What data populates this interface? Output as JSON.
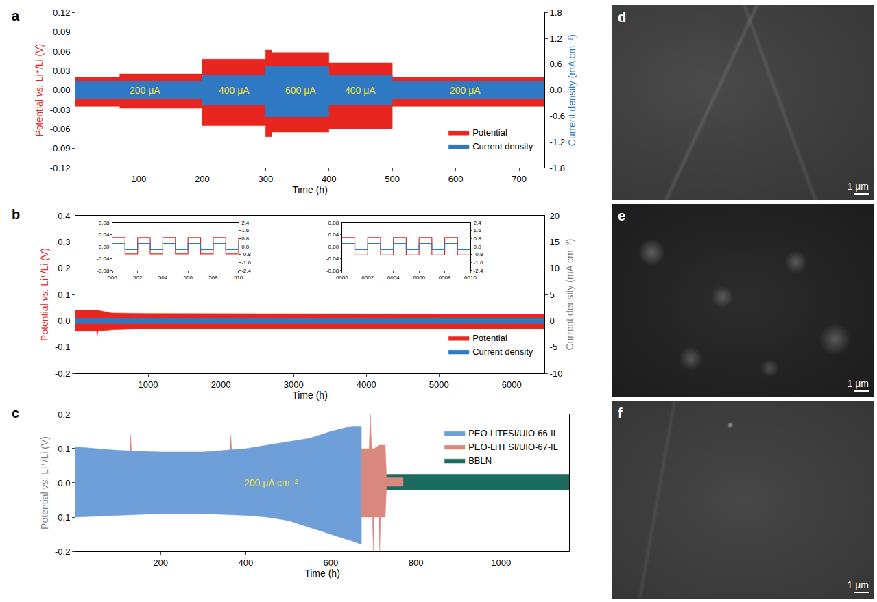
{
  "chart_data": [
    {
      "type": "band",
      "label": "a",
      "xlabel": "Time (h)",
      "ylabel": "Potential vs. Li⁺/Li (V)",
      "y2label": "Current density (mA cm⁻²)",
      "xlim": [
        0,
        740
      ],
      "xticks": [
        100,
        200,
        300,
        400,
        500,
        600,
        700
      ],
      "ylim": [
        -0.12,
        0.12
      ],
      "yticks": [
        -0.12,
        -0.09,
        -0.06,
        -0.03,
        {
          "value": 0,
          "label": "0.00"
        },
        0.03,
        0.06,
        0.09,
        0.12
      ],
      "y2lim": [
        -1.8,
        1.8
      ],
      "y2ticks": [
        -1.8,
        -1.2,
        -0.6,
        {
          "value": 0,
          "label": "0.0"
        },
        0.6,
        1.2,
        1.8
      ],
      "grid": false,
      "legend": "lower right",
      "series": [
        {
          "name": "Potential",
          "color": "#e8251f",
          "axis": "y",
          "x": [
            0,
            70,
            70,
            200,
            200,
            300,
            300,
            310,
            310,
            400,
            400,
            500,
            500,
            740
          ],
          "upper": [
            0.02,
            0.02,
            0.025,
            0.025,
            0.048,
            0.048,
            0.062,
            0.062,
            0.058,
            0.058,
            0.042,
            0.042,
            0.02,
            0.02
          ],
          "lower": [
            -0.025,
            -0.025,
            -0.028,
            -0.028,
            -0.055,
            -0.055,
            -0.072,
            -0.072,
            -0.065,
            -0.065,
            -0.06,
            -0.06,
            -0.025,
            -0.025
          ]
        },
        {
          "name": "Current density",
          "color": "#2f78c4",
          "axis": "y2",
          "x": [
            0,
            200,
            200,
            300,
            300,
            400,
            400,
            500,
            500,
            740
          ],
          "upper": [
            0.2,
            0.2,
            0.35,
            0.35,
            0.55,
            0.55,
            0.35,
            0.35,
            0.2,
            0.2
          ],
          "lower": [
            -0.2,
            -0.2,
            -0.35,
            -0.35,
            -0.62,
            -0.62,
            -0.35,
            -0.35,
            -0.2,
            -0.2
          ]
        }
      ],
      "annotations": [
        {
          "text": "200 μA",
          "x": 110,
          "y": 0
        },
        {
          "text": "400 μA",
          "x": 250,
          "y": 0
        },
        {
          "text": "600 μA",
          "x": 355,
          "y": 0
        },
        {
          "text": "400 μA",
          "x": 450,
          "y": 0
        },
        {
          "text": "200 μA",
          "x": 615,
          "y": 0
        }
      ]
    },
    {
      "type": "band",
      "label": "b",
      "xlabel": "Time (h)",
      "ylabel": "Potential vs. Li⁺/Li (V)",
      "y2label": "Current density (mA cm⁻²)",
      "xlim": [
        0,
        6450
      ],
      "xticks": [
        1000,
        2000,
        3000,
        4000,
        5000,
        6000
      ],
      "ylim": [
        -0.2,
        0.4
      ],
      "yticks": [
        -0.2,
        -0.1,
        {
          "value": 0,
          "label": "0.0"
        },
        0.1,
        0.2,
        0.3,
        0.4
      ],
      "y2lim": [
        -10,
        20
      ],
      "y2ticks": [
        -10,
        -5,
        0,
        5,
        10,
        15,
        20
      ],
      "grid": false,
      "legend": "lower right",
      "series": [
        {
          "name": "Potential",
          "color": "#e8251f",
          "axis": "y",
          "x": [
            0,
            290,
            300,
            310,
            500,
            1000,
            6450
          ],
          "upper": [
            0.04,
            0.04,
            0.04,
            0.04,
            0.03,
            0.028,
            0.025
          ],
          "lower": [
            -0.04,
            -0.04,
            -0.06,
            -0.04,
            -0.035,
            -0.03,
            -0.03
          ]
        },
        {
          "name": "Current density",
          "color": "#2f78c4",
          "axis": "y2",
          "x": [
            0,
            6450
          ],
          "upper": [
            0.5,
            0.5
          ],
          "lower": [
            -0.5,
            -0.5
          ]
        }
      ]
    },
    {
      "type": "line",
      "xlim": [
        500,
        510
      ],
      "xticks": [
        500,
        502,
        504,
        506,
        508,
        510
      ],
      "ylim": [
        -0.08,
        0.08
      ],
      "yticks": [
        -0.08,
        -0.04,
        {
          "value": 0,
          "label": "0.00"
        },
        0.04,
        0.08
      ],
      "y2lim": [
        -2.4,
        2.4
      ],
      "y2ticks": [
        -2.4,
        -1.6,
        -0.8,
        {
          "value": 0,
          "label": "0.0"
        },
        0.8,
        1.6,
        2.4
      ],
      "grid": false,
      "series": [
        {
          "color": "#e8251f",
          "axis": "y",
          "line_style": "step",
          "x": [
            500,
            501,
            502,
            503,
            504,
            505,
            506,
            507,
            508,
            509,
            510
          ],
          "values": [
            0.03,
            -0.025,
            0.03,
            -0.025,
            0.03,
            -0.025,
            0.03,
            -0.025,
            0.03,
            -0.025,
            0.03
          ]
        },
        {
          "color": "#2f78c4",
          "axis": "y2",
          "line_style": "step",
          "x": [
            500,
            501,
            502,
            503,
            504,
            505,
            506,
            507,
            508,
            509,
            510
          ],
          "values": [
            0.3,
            -0.3,
            0.3,
            -0.3,
            0.3,
            -0.3,
            0.3,
            -0.3,
            0.3,
            -0.3,
            0.3
          ]
        }
      ]
    },
    {
      "type": "line",
      "xlim": [
        6000,
        6010
      ],
      "xticks": [
        6000,
        6002,
        6004,
        6006,
        6008,
        6010
      ],
      "ylim": [
        -0.08,
        0.08
      ],
      "yticks": [
        -0.08,
        -0.04,
        {
          "value": 0,
          "label": "0.00"
        },
        0.04,
        0.08
      ],
      "y2lim": [
        -2.4,
        2.4
      ],
      "y2ticks": [
        -2.4,
        -1.6,
        -0.8,
        {
          "value": 0,
          "label": "0.0"
        },
        0.8,
        1.6,
        2.4
      ],
      "grid": false,
      "series": [
        {
          "color": "#e8251f",
          "axis": "y",
          "line_style": "step",
          "x": [
            6000,
            6001,
            6002,
            6003,
            6004,
            6005,
            6006,
            6007,
            6008,
            6009,
            6010
          ],
          "values": [
            0.03,
            -0.028,
            0.03,
            -0.028,
            0.03,
            -0.028,
            0.03,
            -0.028,
            0.03,
            -0.028,
            0.03
          ]
        },
        {
          "color": "#2f78c4",
          "axis": "y2",
          "line_style": "step",
          "x": [
            6000,
            6001,
            6002,
            6003,
            6004,
            6005,
            6006,
            6007,
            6008,
            6009,
            6010
          ],
          "values": [
            0.3,
            -0.3,
            0.3,
            -0.3,
            0.3,
            -0.3,
            0.3,
            -0.3,
            0.3,
            -0.3,
            0.3
          ]
        }
      ]
    },
    {
      "type": "band",
      "label": "c",
      "xlabel": "Time (h)",
      "ylabel": "Potential vs. Li⁺/Li (V)",
      "xlim": [
        0,
        1160
      ],
      "xticks": [
        200,
        400,
        600,
        800,
        1000
      ],
      "ylim": [
        -0.2,
        0.2
      ],
      "yticks": [
        -0.2,
        -0.1,
        {
          "value": 0,
          "label": "0.0"
        },
        0.1,
        0.2
      ],
      "grid": false,
      "legend": "upper right",
      "series": [
        {
          "name": "PEO-LiTFSI/UIO-66-IL",
          "color": "#6f9fd8",
          "axis": "y",
          "x": [
            0,
            100,
            200,
            300,
            400,
            450,
            500,
            550,
            600,
            650,
            672
          ],
          "upper": [
            0.105,
            0.095,
            0.09,
            0.09,
            0.1,
            0.11,
            0.12,
            0.13,
            0.15,
            0.165,
            0.165
          ],
          "lower": [
            -0.1,
            -0.095,
            -0.09,
            -0.09,
            -0.095,
            -0.1,
            -0.11,
            -0.13,
            -0.15,
            -0.17,
            -0.18
          ]
        },
        {
          "name": "PEO-LiTFSI/UIO-67-IL",
          "color": "#d98880",
          "axis": "y",
          "x": [
            0,
            128,
            130,
            132,
            362,
            365,
            368,
            537,
            540,
            543,
            672,
            690,
            693,
            696,
            698,
            700,
            702,
            713,
            715,
            717,
            728,
            731,
            735,
            770
          ],
          "upper": [
            0.08,
            0.08,
            0.14,
            0.08,
            0.08,
            0.14,
            0.08,
            0.08,
            0.11,
            0.08,
            0.1,
            0.1,
            0.2,
            0.1,
            0.1,
            0.1,
            0.1,
            0.11,
            0.11,
            0.11,
            0.11,
            0.015,
            0.015,
            0.015
          ],
          "lower": [
            -0.08,
            -0.08,
            -0.08,
            -0.08,
            -0.08,
            -0.08,
            -0.08,
            -0.08,
            -0.08,
            -0.08,
            -0.1,
            -0.1,
            -0.1,
            -0.1,
            -0.1,
            -0.2,
            -0.1,
            -0.1,
            -0.2,
            -0.1,
            -0.1,
            -0.01,
            -0.01,
            -0.01
          ]
        },
        {
          "name": "BBLN",
          "color": "#1b6b5e",
          "axis": "y",
          "x": [
            0,
            1160
          ],
          "upper": [
            0.025,
            0.025
          ],
          "lower": [
            -0.02,
            -0.02
          ]
        }
      ],
      "annotations": [
        {
          "text": "200 μA cm⁻²",
          "x": 460,
          "y": 0
        }
      ]
    }
  ],
  "images": [
    {
      "label": "d",
      "scale_bar": "1 μm"
    },
    {
      "label": "e",
      "scale_bar": "1 μm"
    },
    {
      "label": "f",
      "scale_bar": "1 μm"
    }
  ]
}
